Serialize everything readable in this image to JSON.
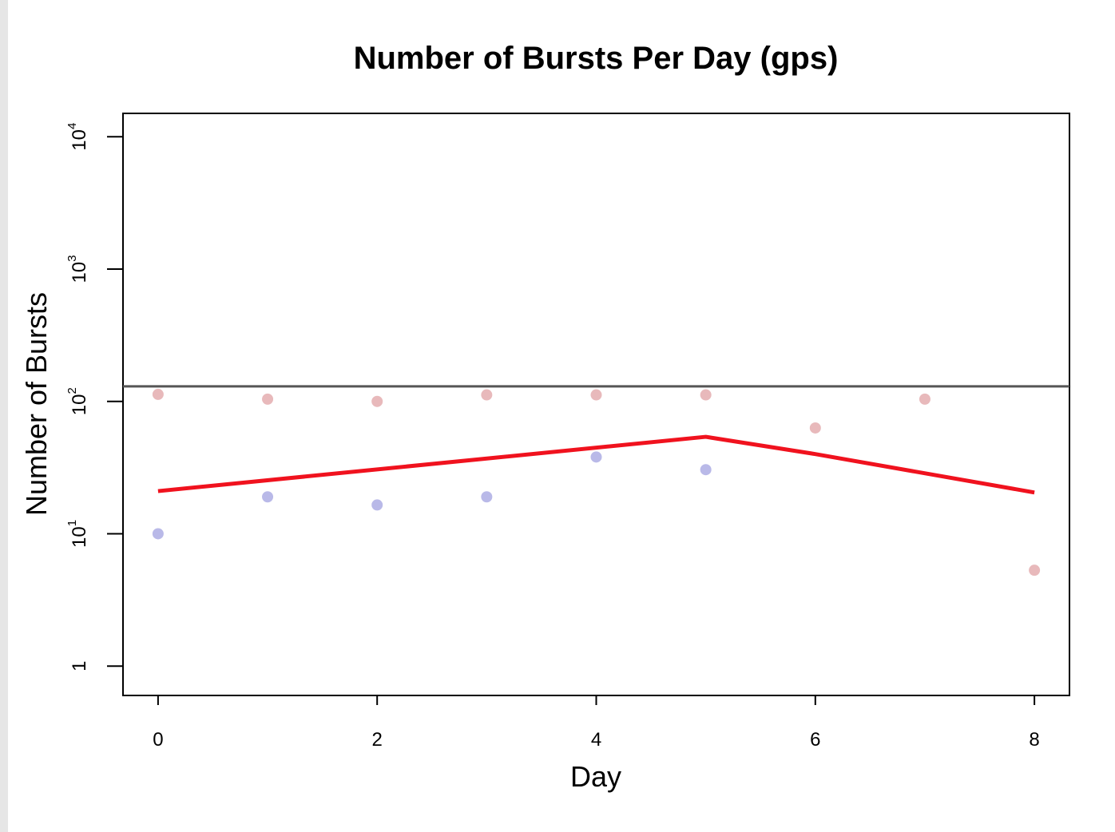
{
  "chart_data": {
    "type": "scatter",
    "title": "Number of Bursts Per Day (gps)",
    "xlabel": "Day",
    "ylabel": "Number of Bursts",
    "xlim": [
      -0.32,
      8.32
    ],
    "ylim": [
      0.6,
      15000
    ],
    "y_scale": "log",
    "x_ticks": [
      0,
      2,
      4,
      6,
      8
    ],
    "x_tick_labels": [
      "0",
      "2",
      "4",
      "6",
      "8"
    ],
    "y_ticks": [
      {
        "value": 1,
        "base": "1",
        "exp": ""
      },
      {
        "value": 10,
        "base": "10",
        "exp": "1"
      },
      {
        "value": 100,
        "base": "10",
        "exp": "2"
      },
      {
        "value": 1000,
        "base": "10",
        "exp": "3"
      },
      {
        "value": 10000,
        "base": "10",
        "exp": "4"
      }
    ],
    "reference_line": {
      "y": 130,
      "color": "#555555"
    },
    "series": [
      {
        "style": "points",
        "color": "#e8b9bb",
        "x": [
          0,
          1,
          2,
          3,
          4,
          5,
          6,
          7,
          8
        ],
        "y": [
          113,
          104,
          100,
          112,
          112,
          112,
          63,
          104,
          5.3
        ]
      },
      {
        "style": "points",
        "color": "#b9b9e8",
        "x": [
          0,
          1,
          2,
          3,
          4,
          5
        ],
        "y": [
          10,
          19,
          16.5,
          19,
          38,
          30.5
        ]
      },
      {
        "style": "line",
        "color": "#f0121e",
        "x": [
          0,
          5,
          6,
          8
        ],
        "y": [
          21,
          54,
          40,
          20.5
        ]
      }
    ],
    "grid": false,
    "legend": "none"
  }
}
